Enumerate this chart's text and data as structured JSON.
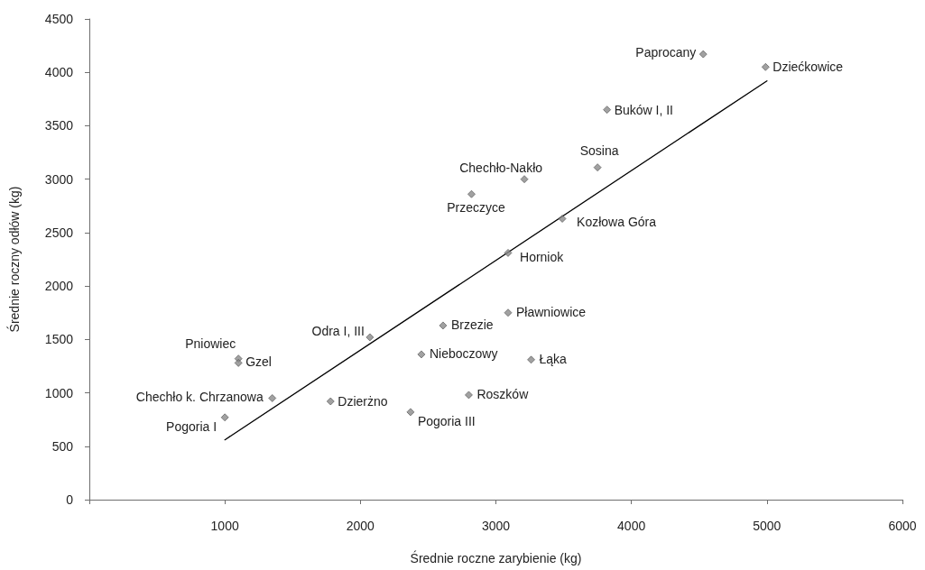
{
  "chart_data": {
    "type": "scatter",
    "xlabel": "Średnie roczne zarybienie (kg)",
    "ylabel": "Średnie roczny odłów (kg)",
    "xlim": [
      0,
      6000
    ],
    "xticks": [
      {
        "value": 0,
        "label": null
      },
      1000,
      2000,
      3000,
      4000,
      5000,
      6000
    ],
    "ylim": [
      0,
      4500
    ],
    "yticks": [
      0,
      500,
      1000,
      1500,
      2000,
      2500,
      3000,
      3500,
      4000,
      4500
    ],
    "grid": false,
    "series": [
      {
        "color": "#8a8a8a",
        "marker": "diamond",
        "x": [
          4530,
          4990,
          3820,
          3750,
          3210,
          2820,
          3490,
          3090,
          3090,
          2610,
          2070,
          2450,
          3260,
          1100,
          1100,
          1350,
          1780,
          2800,
          1000,
          2370
        ],
        "values": [
          4170,
          4050,
          3650,
          3110,
          3000,
          2860,
          2630,
          2310,
          1750,
          1630,
          1520,
          1360,
          1310,
          1320,
          1280,
          950,
          920,
          980,
          770,
          820
        ]
      },
      {
        "type": "line",
        "color": "#000000",
        "marker": "none",
        "line_style": "solid",
        "x": [
          1000,
          5000
        ],
        "values": [
          560,
          3920
        ]
      }
    ],
    "annotations": [
      {
        "text": "Paprocany",
        "x": 4530,
        "y": 4170
      },
      {
        "text": "Dziećkowice",
        "x": 4990,
        "y": 4050
      },
      {
        "text": "Buków I, II",
        "x": 3820,
        "y": 3650
      },
      {
        "text": "Sosina",
        "x": 3750,
        "y": 3110
      },
      {
        "text": "Chechło-Nakło",
        "x": 3210,
        "y": 3000
      },
      {
        "text": "Przeczyce",
        "x": 2820,
        "y": 2860
      },
      {
        "text": "Kozłowa Góra",
        "x": 3490,
        "y": 2630
      },
      {
        "text": "Horniok",
        "x": 3090,
        "y": 2310
      },
      {
        "text": "Pławniowice",
        "x": 3090,
        "y": 1750
      },
      {
        "text": "Brzezie",
        "x": 2610,
        "y": 1630
      },
      {
        "text": "Odra I, III",
        "x": 2070,
        "y": 1520
      },
      {
        "text": "Nieboczowy",
        "x": 2450,
        "y": 1360
      },
      {
        "text": "Łąka",
        "x": 3260,
        "y": 1310
      },
      {
        "text": "Pniowiec",
        "x": 1100,
        "y": 1320
      },
      {
        "text": "Gzel",
        "x": 1100,
        "y": 1280
      },
      {
        "text": "Chechło k. Chrzanowa",
        "x": 1350,
        "y": 950
      },
      {
        "text": "Dzierżno",
        "x": 1780,
        "y": 920
      },
      {
        "text": "Roszków",
        "x": 2800,
        "y": 980
      },
      {
        "text": "Pogoria I",
        "x": 1000,
        "y": 770
      },
      {
        "text": "Pogoria III",
        "x": 2370,
        "y": 820
      }
    ]
  }
}
